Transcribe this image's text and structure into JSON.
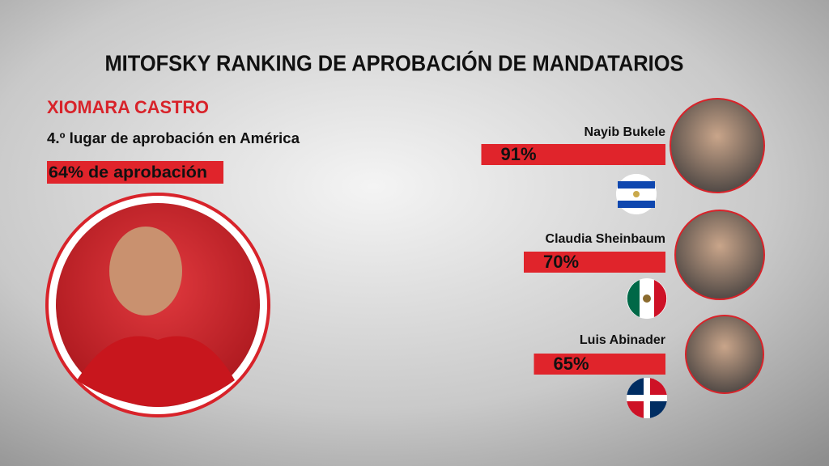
{
  "title": "MITOFSKY RANKING DE APROBACIÓN DE MANDATARIOS",
  "featured": {
    "name": "XIOMARA CASTRO",
    "rank": "4.º lugar de aprobación en América",
    "approval": "64% de aprobación"
  },
  "leaders": {
    "names": [
      "Nayib Bukele",
      "Claudia Sheinbaum",
      "Luis Abinader"
    ],
    "values": [
      91,
      70,
      65
    ],
    "value_labels": [
      "91%",
      "70%",
      "65%"
    ]
  }
}
